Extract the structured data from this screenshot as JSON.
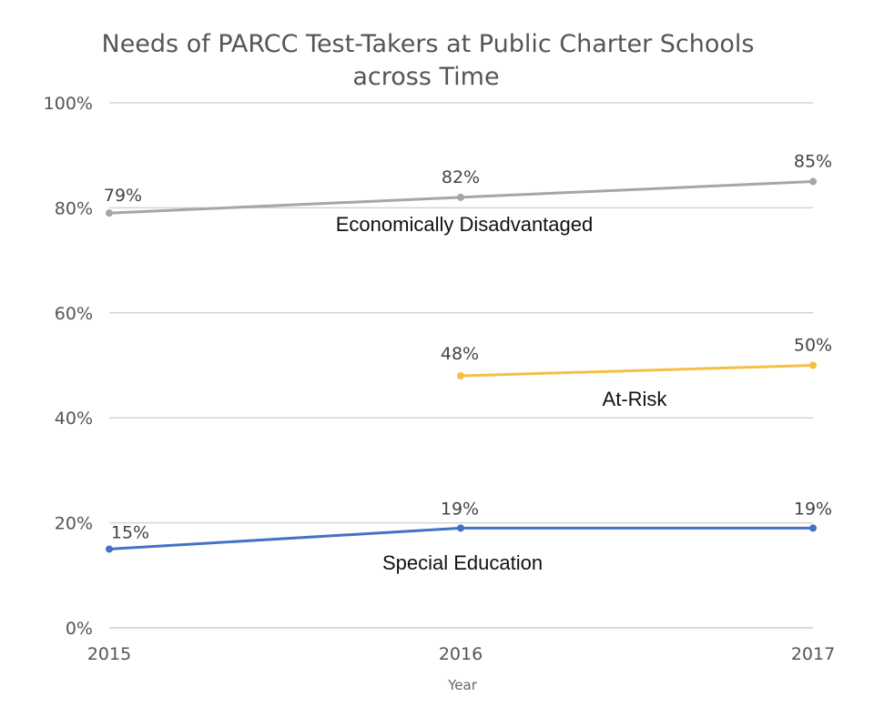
{
  "chart_data": {
    "type": "line",
    "title_lines": [
      "Needs of PARCC Test-Takers at Public Charter Schools",
      "across Time"
    ],
    "xlabel": "Year",
    "ylabel": "",
    "x": [
      "2015",
      "2016",
      "2017"
    ],
    "ylim": [
      0,
      100
    ],
    "y_ticks": [
      "0%",
      "20%",
      "40%",
      "60%",
      "80%",
      "100%"
    ],
    "grid": true,
    "legend": "none",
    "series": [
      {
        "name": "Economically Disadvantaged",
        "color": "#a6a6a6",
        "values": [
          79,
          82,
          85
        ],
        "labels": [
          "79%",
          "82%",
          "85%"
        ]
      },
      {
        "name": "At-Risk",
        "color": "#f5bf45",
        "values": [
          null,
          48,
          50
        ],
        "labels": [
          "",
          "48%",
          "50%"
        ]
      },
      {
        "name": "Special Education",
        "color": "#4472c4",
        "values": [
          15,
          19,
          19
        ],
        "labels": [
          "15%",
          "19%",
          "19%"
        ]
      }
    ]
  }
}
